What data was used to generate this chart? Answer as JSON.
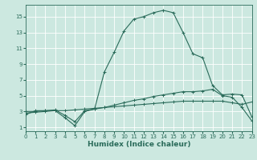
{
  "xlabel": "Humidex (Indice chaleur)",
  "background_color": "#cce8e0",
  "grid_color": "#b0d8d0",
  "line_color": "#2a6b5a",
  "x_ticks": [
    0,
    1,
    2,
    3,
    4,
    5,
    6,
    7,
    8,
    9,
    10,
    11,
    12,
    13,
    14,
    15,
    16,
    17,
    18,
    19,
    20,
    21,
    22,
    23
  ],
  "y_ticks": [
    1,
    3,
    5,
    7,
    9,
    11,
    13,
    15
  ],
  "xlim": [
    0,
    23
  ],
  "ylim": [
    0.5,
    16.5
  ],
  "line1_x": [
    0,
    1,
    2,
    3,
    4,
    5,
    6,
    7,
    8,
    9,
    10,
    11,
    12,
    13,
    14,
    15,
    16,
    17,
    18,
    19,
    20,
    21,
    22,
    23
  ],
  "line1_y": [
    2.6,
    3.1,
    3.1,
    3.1,
    2.2,
    1.2,
    3.0,
    3.3,
    8.0,
    10.5,
    13.2,
    14.7,
    15.0,
    15.5,
    15.8,
    15.5,
    13.0,
    10.3,
    9.8,
    6.3,
    5.1,
    5.2,
    5.1,
    2.3
  ],
  "line2_x": [
    0,
    1,
    2,
    3,
    4,
    5,
    6,
    7,
    8,
    9,
    10,
    11,
    12,
    13,
    14,
    15,
    16,
    17,
    18,
    19,
    20,
    21,
    22,
    23
  ],
  "line2_y": [
    3.0,
    3.0,
    3.1,
    3.2,
    2.5,
    1.7,
    3.1,
    3.3,
    3.5,
    3.8,
    4.1,
    4.4,
    4.6,
    4.9,
    5.1,
    5.3,
    5.5,
    5.5,
    5.6,
    5.8,
    5.0,
    4.8,
    3.5,
    1.8
  ],
  "line3_x": [
    0,
    1,
    2,
    3,
    4,
    5,
    6,
    7,
    8,
    9,
    10,
    11,
    12,
    13,
    14,
    15,
    16,
    17,
    18,
    19,
    20,
    21,
    22,
    23
  ],
  "line3_y": [
    2.8,
    2.9,
    3.0,
    3.1,
    3.1,
    3.2,
    3.3,
    3.4,
    3.5,
    3.6,
    3.7,
    3.8,
    3.9,
    4.0,
    4.1,
    4.2,
    4.3,
    4.3,
    4.3,
    4.3,
    4.3,
    4.1,
    3.9,
    4.2
  ],
  "linewidth": 0.8,
  "markersize": 3.5
}
